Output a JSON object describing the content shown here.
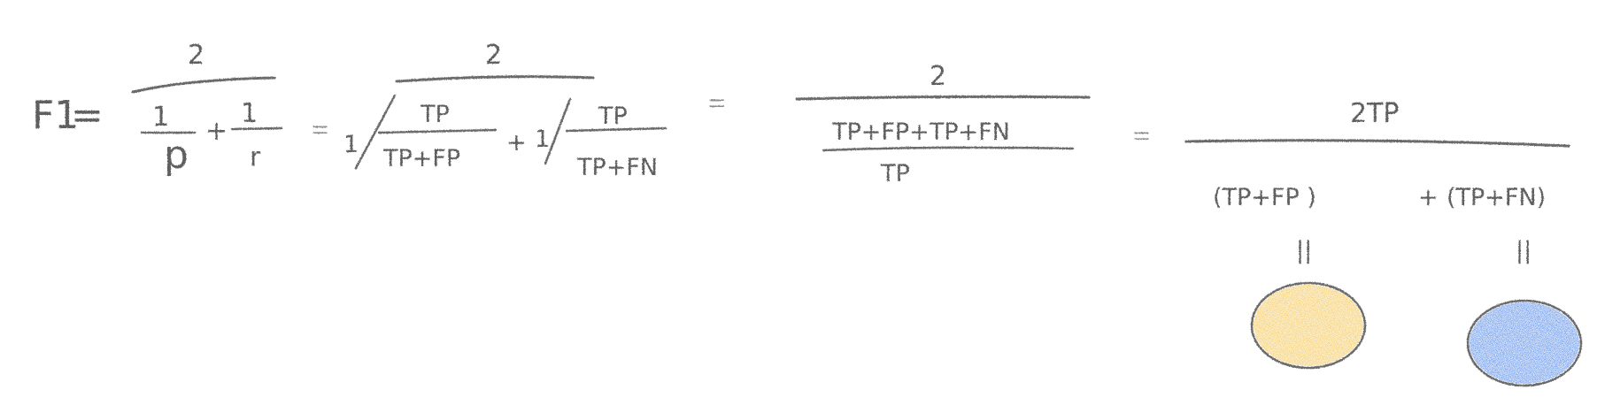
{
  "formula": {
    "lhs": "F1",
    "equals": "=",
    "term1": {
      "numerator": "2",
      "denominator_part1": {
        "numerator": "1",
        "denominator": "p"
      },
      "plus": "+",
      "denominator_part2": {
        "numerator": "1",
        "denominator": "r"
      }
    },
    "term2": {
      "numerator": "2",
      "part1": {
        "one": "1",
        "numerator": "TP",
        "denominator": "TP+FP"
      },
      "plus": "+",
      "part2": {
        "one": "1",
        "numerator": "TP",
        "denominator": "TP+FN"
      }
    },
    "term3": {
      "numerator": "2",
      "inner_numerator": "TP+FP+TP+FN",
      "inner_denominator": "TP"
    },
    "term4": {
      "numerator": "2TP",
      "group1": "(TP+FP )",
      "plus": "+",
      "group2": "(TP+FN)"
    },
    "annotations": {
      "equal_mark_1": "||",
      "equal_mark_2": "||",
      "blob_1_color": "#f3c24a",
      "blob_2_color": "#4f86e8"
    }
  }
}
